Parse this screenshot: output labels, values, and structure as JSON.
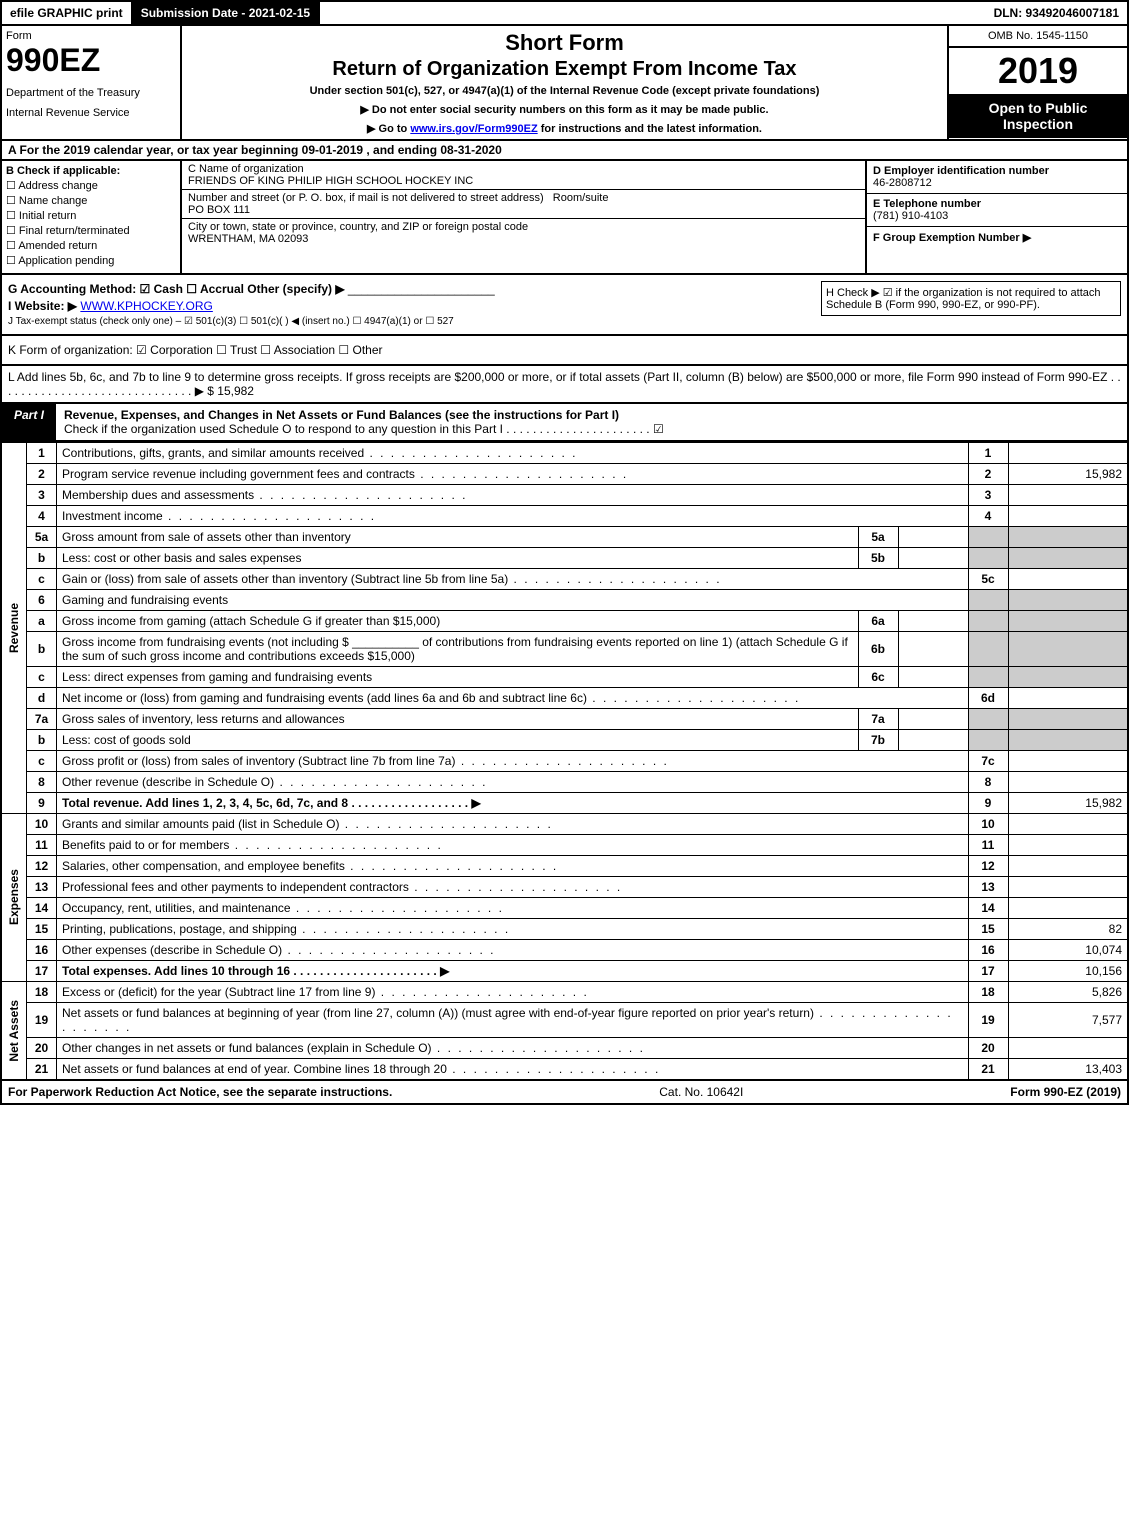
{
  "topbar": {
    "efile": "efile GRAPHIC print",
    "submission": "Submission Date - 2021-02-15",
    "dln": "DLN: 93492046007181"
  },
  "header": {
    "form_label": "Form",
    "form_number": "990EZ",
    "dept1": "Department of the Treasury",
    "dept2": "Internal Revenue Service",
    "title1": "Short Form",
    "title2": "Return of Organization Exempt From Income Tax",
    "subtitle": "Under section 501(c), 527, or 4947(a)(1) of the Internal Revenue Code (except private foundations)",
    "arrow1": "▶ Do not enter social security numbers on this form as it may be made public.",
    "arrow2_pre": "▶ Go to ",
    "arrow2_link": "www.irs.gov/Form990EZ",
    "arrow2_post": " for instructions and the latest information.",
    "omb": "OMB No. 1545-1150",
    "year": "2019",
    "inspect": "Open to Public Inspection"
  },
  "sectionA": "A For the 2019 calendar year, or tax year beginning 09-01-2019 , and ending 08-31-2020",
  "colB": {
    "header": "B Check if applicable:",
    "items": [
      "Address change",
      "Name change",
      "Initial return",
      "Final return/terminated",
      "Amended return",
      "Application pending"
    ]
  },
  "colC": {
    "name_label": "C Name of organization",
    "name": "FRIENDS OF KING PHILIP HIGH SCHOOL HOCKEY INC",
    "street_label": "Number and street (or P. O. box, if mail is not delivered to street address)",
    "room_label": "Room/suite",
    "street": "PO BOX 111",
    "city_label": "City or town, state or province, country, and ZIP or foreign postal code",
    "city": "WRENTHAM, MA  02093"
  },
  "colD": {
    "ein_label": "D Employer identification number",
    "ein": "46-2808712",
    "tel_label": "E Telephone number",
    "tel": "(781) 910-4103",
    "grp_label": "F Group Exemption Number ▶"
  },
  "meta": {
    "g": "G Accounting Method:  ☑ Cash  ☐ Accrual  Other (specify) ▶",
    "i_pre": "I Website: ▶",
    "i_link": "WWW.KPHOCKEY.ORG",
    "j": "J Tax-exempt status (check only one) – ☑ 501(c)(3) ☐ 501(c)( ) ◀ (insert no.) ☐ 4947(a)(1) or ☐ 527",
    "h": "H Check ▶ ☑ if the organization is not required to attach Schedule B (Form 990, 990-EZ, or 990-PF).",
    "k": "K Form of organization:  ☑ Corporation  ☐ Trust  ☐ Association  ☐ Other",
    "l": "L Add lines 5b, 6c, and 7b to line 9 to determine gross receipts. If gross receipts are $200,000 or more, or if total assets (Part II, column (B) below) are $500,000 or more, file Form 990 instead of Form 990-EZ . . . . . . . . . . . . . . . . . . . . . . . . . . . . . . ▶ $ 15,982"
  },
  "part1": {
    "tab": "Part I",
    "title": "Revenue, Expenses, and Changes in Net Assets or Fund Balances (see the instructions for Part I)",
    "subtitle": "Check if the organization used Schedule O to respond to any question in this Part I . . . . . . . . . . . . . . . . . . . . . . ☑"
  },
  "sections": {
    "revenue": "Revenue",
    "expenses": "Expenses",
    "netassets": "Net Assets"
  },
  "rows": [
    {
      "n": "1",
      "d": "Contributions, gifts, grants, and similar amounts received",
      "ln": "1",
      "amt": ""
    },
    {
      "n": "2",
      "d": "Program service revenue including government fees and contracts",
      "ln": "2",
      "amt": "15,982"
    },
    {
      "n": "3",
      "d": "Membership dues and assessments",
      "ln": "3",
      "amt": ""
    },
    {
      "n": "4",
      "d": "Investment income",
      "ln": "4",
      "amt": ""
    },
    {
      "n": "5a",
      "d": "Gross amount from sale of assets other than inventory",
      "sn": "5a"
    },
    {
      "n": "b",
      "d": "Less: cost or other basis and sales expenses",
      "sn": "5b"
    },
    {
      "n": "c",
      "d": "Gain or (loss) from sale of assets other than inventory (Subtract line 5b from line 5a)",
      "ln": "5c",
      "amt": ""
    },
    {
      "n": "6",
      "d": "Gaming and fundraising events"
    },
    {
      "n": "a",
      "d": "Gross income from gaming (attach Schedule G if greater than $15,000)",
      "sn": "6a"
    },
    {
      "n": "b",
      "d": "Gross income from fundraising events (not including $ __________ of contributions from fundraising events reported on line 1) (attach Schedule G if the sum of such gross income and contributions exceeds $15,000)",
      "sn": "6b"
    },
    {
      "n": "c",
      "d": "Less: direct expenses from gaming and fundraising events",
      "sn": "6c"
    },
    {
      "n": "d",
      "d": "Net income or (loss) from gaming and fundraising events (add lines 6a and 6b and subtract line 6c)",
      "ln": "6d",
      "amt": ""
    },
    {
      "n": "7a",
      "d": "Gross sales of inventory, less returns and allowances",
      "sn": "7a"
    },
    {
      "n": "b",
      "d": "Less: cost of goods sold",
      "sn": "7b"
    },
    {
      "n": "c",
      "d": "Gross profit or (loss) from sales of inventory (Subtract line 7b from line 7a)",
      "ln": "7c",
      "amt": ""
    },
    {
      "n": "8",
      "d": "Other revenue (describe in Schedule O)",
      "ln": "8",
      "amt": ""
    },
    {
      "n": "9",
      "d": "Total revenue. Add lines 1, 2, 3, 4, 5c, 6d, 7c, and 8  . . . . . . . . . . . . . . . . . . ▶",
      "ln": "9",
      "amt": "15,982",
      "bold": true
    },
    {
      "n": "10",
      "d": "Grants and similar amounts paid (list in Schedule O)",
      "ln": "10",
      "amt": ""
    },
    {
      "n": "11",
      "d": "Benefits paid to or for members",
      "ln": "11",
      "amt": ""
    },
    {
      "n": "12",
      "d": "Salaries, other compensation, and employee benefits",
      "ln": "12",
      "amt": ""
    },
    {
      "n": "13",
      "d": "Professional fees and other payments to independent contractors",
      "ln": "13",
      "amt": ""
    },
    {
      "n": "14",
      "d": "Occupancy, rent, utilities, and maintenance",
      "ln": "14",
      "amt": ""
    },
    {
      "n": "15",
      "d": "Printing, publications, postage, and shipping",
      "ln": "15",
      "amt": "82"
    },
    {
      "n": "16",
      "d": "Other expenses (describe in Schedule O)",
      "ln": "16",
      "amt": "10,074"
    },
    {
      "n": "17",
      "d": "Total expenses. Add lines 10 through 16  . . . . . . . . . . . . . . . . . . . . . . ▶",
      "ln": "17",
      "amt": "10,156",
      "bold": true
    },
    {
      "n": "18",
      "d": "Excess or (deficit) for the year (Subtract line 17 from line 9)",
      "ln": "18",
      "amt": "5,826"
    },
    {
      "n": "19",
      "d": "Net assets or fund balances at beginning of year (from line 27, column (A)) (must agree with end-of-year figure reported on prior year's return)",
      "ln": "19",
      "amt": "7,577"
    },
    {
      "n": "20",
      "d": "Other changes in net assets or fund balances (explain in Schedule O)",
      "ln": "20",
      "amt": ""
    },
    {
      "n": "21",
      "d": "Net assets or fund balances at end of year. Combine lines 18 through 20",
      "ln": "21",
      "amt": "13,403"
    }
  ],
  "footer": {
    "left": "For Paperwork Reduction Act Notice, see the separate instructions.",
    "mid": "Cat. No. 10642I",
    "right": "Form 990-EZ (2019)"
  },
  "colors": {
    "black": "#000000",
    "white": "#ffffff",
    "shade": "#cccccc",
    "link": "#0000ee"
  }
}
